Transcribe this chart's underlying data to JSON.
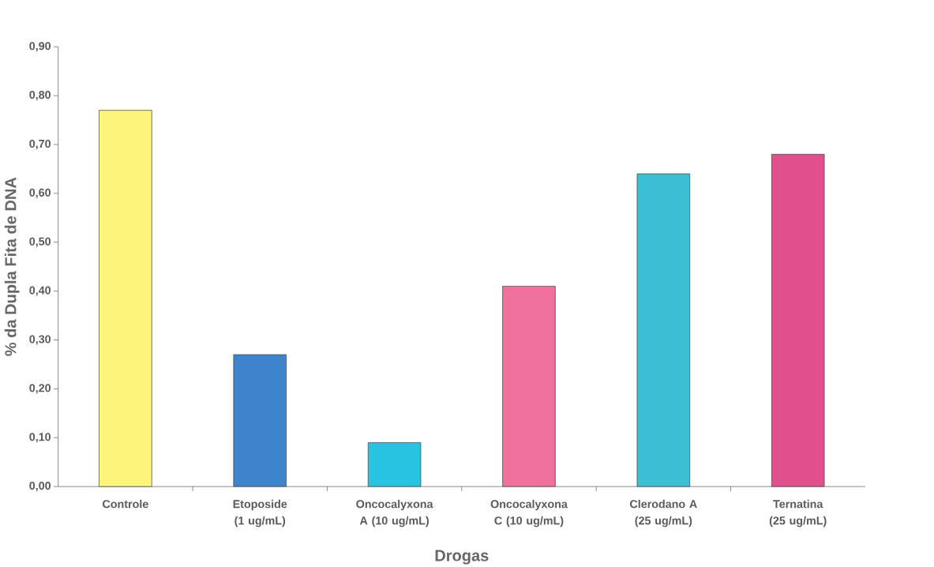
{
  "chart_data": {
    "type": "bar",
    "xlabel": "Drogas",
    "ylabel": "% da Dupla Fita de DNA",
    "categories": [
      "Controle",
      "Etoposide (1 ug/mL)",
      "Oncocalyxona A (10 ug/mL)",
      "Oncocalyxona C (10 ug/mL)",
      "Clerodano A (25 ug/mL)",
      "Ternatina (25 ug/mL)"
    ],
    "values": [
      0.77,
      0.27,
      0.09,
      0.41,
      0.64,
      0.68
    ],
    "colors": [
      "#fdf57a",
      "#3d84cc",
      "#27c3e0",
      "#f0709e",
      "#3cbfd2",
      "#e0508c"
    ],
    "ylim": [
      0,
      0.9
    ],
    "yticks": [
      {
        "value": 0,
        "label": "0,00"
      },
      {
        "value": 0.1,
        "label": "0,10"
      },
      {
        "value": 0.2,
        "label": "0,20"
      },
      {
        "value": 0.3,
        "label": "0,30"
      },
      {
        "value": 0.4,
        "label": "0,40"
      },
      {
        "value": 0.5,
        "label": "0,50"
      },
      {
        "value": 0.6,
        "label": "0,60"
      },
      {
        "value": 0.7,
        "label": "0,70"
      },
      {
        "value": 0.8,
        "label": "0,80"
      },
      {
        "value": 0.9,
        "label": "0,90"
      }
    ]
  }
}
